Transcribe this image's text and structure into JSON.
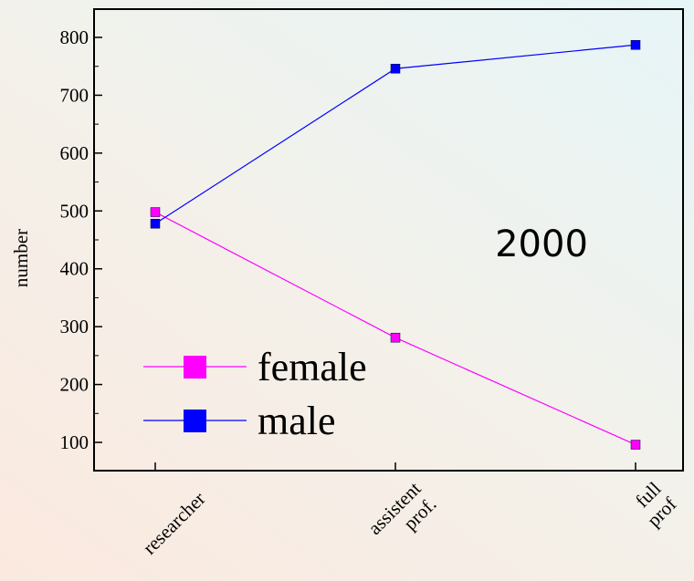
{
  "chart_data": {
    "type": "line",
    "categories": [
      "researcher",
      "assistent prof.",
      "full prof"
    ],
    "series": [
      {
        "name": "female",
        "values": [
          498,
          281,
          96
        ],
        "color": "#ff00ff"
      },
      {
        "name": "male",
        "values": [
          478,
          746,
          787
        ],
        "color": "#0000ff"
      }
    ],
    "title": "",
    "xlabel": "",
    "ylabel": "number",
    "ylim": [
      60,
      850
    ],
    "yticks": [
      100,
      200,
      300,
      400,
      500,
      600,
      700,
      800
    ],
    "annotation": "2000",
    "legend_position": "bottom-left",
    "grid": false
  }
}
